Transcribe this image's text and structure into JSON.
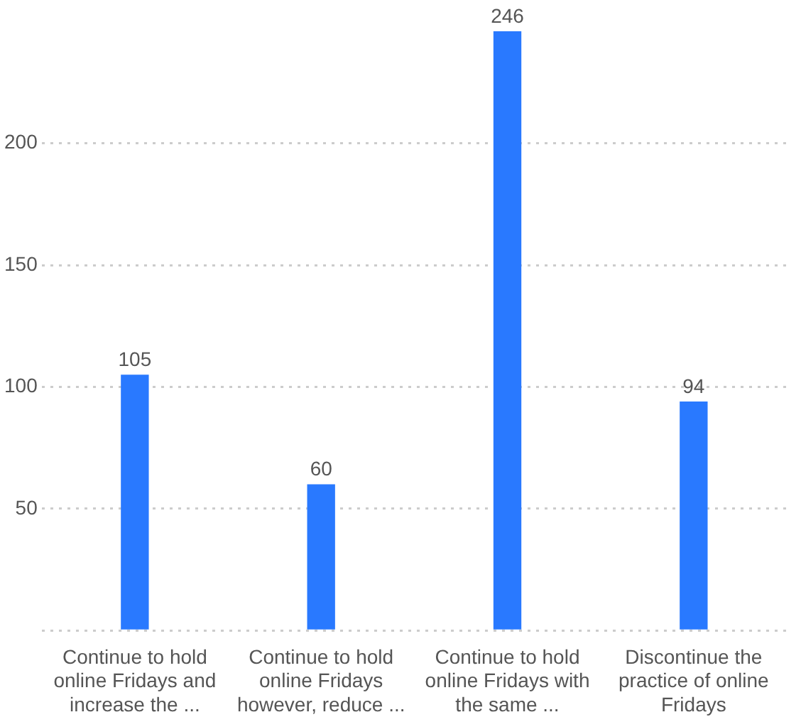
{
  "chart_data": {
    "type": "bar",
    "categories": [
      "Continue to hold online Fridays and increase the ...",
      "Continue to hold online Fridays however, reduce ...",
      "Continue to hold online Fridays with the same ...",
      "Discontinue the practice of online Fridays"
    ],
    "values": [
      105,
      60,
      246,
      94
    ],
    "color": "#2979ff",
    "ylim": [
      0,
      246
    ],
    "yticks": [
      {
        "value": 0,
        "label": null
      },
      50,
      100,
      150,
      200
    ],
    "grid": "y",
    "data_labels": true
  }
}
